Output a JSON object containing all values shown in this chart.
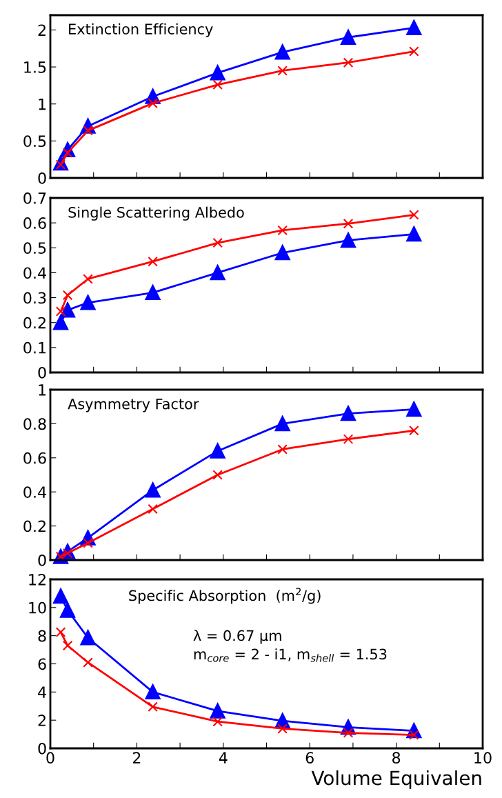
{
  "chart_data": [
    {
      "type": "line",
      "title": "Extinction Efficiency",
      "xlim": [
        0,
        10
      ],
      "xticks": [
        0,
        1,
        2,
        3,
        4,
        5,
        6,
        7,
        8,
        9,
        10
      ],
      "ylim": [
        0,
        2.2
      ],
      "yticks": [
        0,
        0.5,
        1,
        1.5,
        2
      ],
      "tick_labels": "y",
      "x": [
        0.24,
        0.4,
        0.87,
        2.37,
        3.87,
        5.37,
        6.89,
        8.41
      ],
      "series": [
        {
          "color": "#0000ff",
          "marker": "triangle",
          "values": [
            0.2,
            0.38,
            0.7,
            1.1,
            1.42,
            1.7,
            1.9,
            2.03
          ]
        },
        {
          "color": "#ff0000",
          "marker": "cross",
          "values": [
            0.18,
            0.34,
            0.64,
            1.01,
            1.26,
            1.45,
            1.56,
            1.71
          ]
        }
      ]
    },
    {
      "type": "line",
      "title": "Single Scattering Albedo",
      "xlim": [
        0,
        10
      ],
      "xticks": [
        0,
        1,
        2,
        3,
        4,
        5,
        6,
        7,
        8,
        9,
        10
      ],
      "ylim": [
        0,
        0.7
      ],
      "yticks": [
        0,
        0.1,
        0.2,
        0.3,
        0.4,
        0.5,
        0.6,
        0.7
      ],
      "tick_labels": "y",
      "x": [
        0.24,
        0.4,
        0.87,
        2.37,
        3.87,
        5.37,
        6.89,
        8.41
      ],
      "series": [
        {
          "color": "#0000ff",
          "marker": "triangle",
          "values": [
            0.2,
            0.25,
            0.28,
            0.32,
            0.4,
            0.48,
            0.53,
            0.555
          ]
        },
        {
          "color": "#ff0000",
          "marker": "cross",
          "values": [
            0.245,
            0.31,
            0.375,
            0.445,
            0.52,
            0.57,
            0.597,
            0.632
          ]
        }
      ]
    },
    {
      "type": "line",
      "title": "Asymmetry Factor",
      "xlim": [
        0,
        10
      ],
      "xticks": [
        0,
        1,
        2,
        3,
        4,
        5,
        6,
        7,
        8,
        9,
        10
      ],
      "ylim": [
        0,
        1
      ],
      "yticks": [
        0,
        0.2,
        0.4,
        0.6,
        0.8,
        1
      ],
      "tick_labels": "y",
      "x": [
        0.24,
        0.4,
        0.87,
        2.37,
        3.87,
        5.37,
        6.89,
        8.41
      ],
      "series": [
        {
          "color": "#0000ff",
          "marker": "triangle",
          "values": [
            0.02,
            0.05,
            0.13,
            0.41,
            0.64,
            0.8,
            0.86,
            0.885
          ]
        },
        {
          "color": "#ff0000",
          "marker": "cross",
          "values": [
            0.02,
            0.04,
            0.1,
            0.3,
            0.5,
            0.65,
            0.71,
            0.76
          ]
        }
      ]
    },
    {
      "type": "line",
      "title": "Specific Absorption  (m$^{2}$/g)",
      "xlabel": "Volume Equivalen",
      "xlim": [
        0,
        10
      ],
      "xticks": [
        0,
        {
          "value": 1,
          "label": null
        },
        2,
        {
          "value": 3,
          "label": null
        },
        4,
        {
          "value": 5,
          "label": null
        },
        6,
        {
          "value": 7,
          "label": null
        },
        8,
        {
          "value": 9,
          "label": null
        },
        10
      ],
      "ylim": [
        0,
        12
      ],
      "yticks": [
        0,
        2,
        4,
        6,
        8,
        10,
        12
      ],
      "annotations": [
        "λ = 0.67 μm",
        "m$_{core}$ = 2 - i1, m$_{shell}$ = 1.53"
      ],
      "x": [
        0.24,
        0.4,
        0.87,
        2.37,
        3.87,
        5.37,
        6.89,
        8.41
      ],
      "series": [
        {
          "color": "#0000ff",
          "marker": "triangle",
          "values": [
            10.8,
            9.8,
            7.85,
            4.0,
            2.65,
            1.95,
            1.5,
            1.25
          ]
        },
        {
          "color": "#ff0000",
          "marker": "cross",
          "values": [
            8.25,
            7.3,
            6.1,
            2.95,
            1.9,
            1.4,
            1.1,
            0.95
          ]
        }
      ]
    }
  ]
}
